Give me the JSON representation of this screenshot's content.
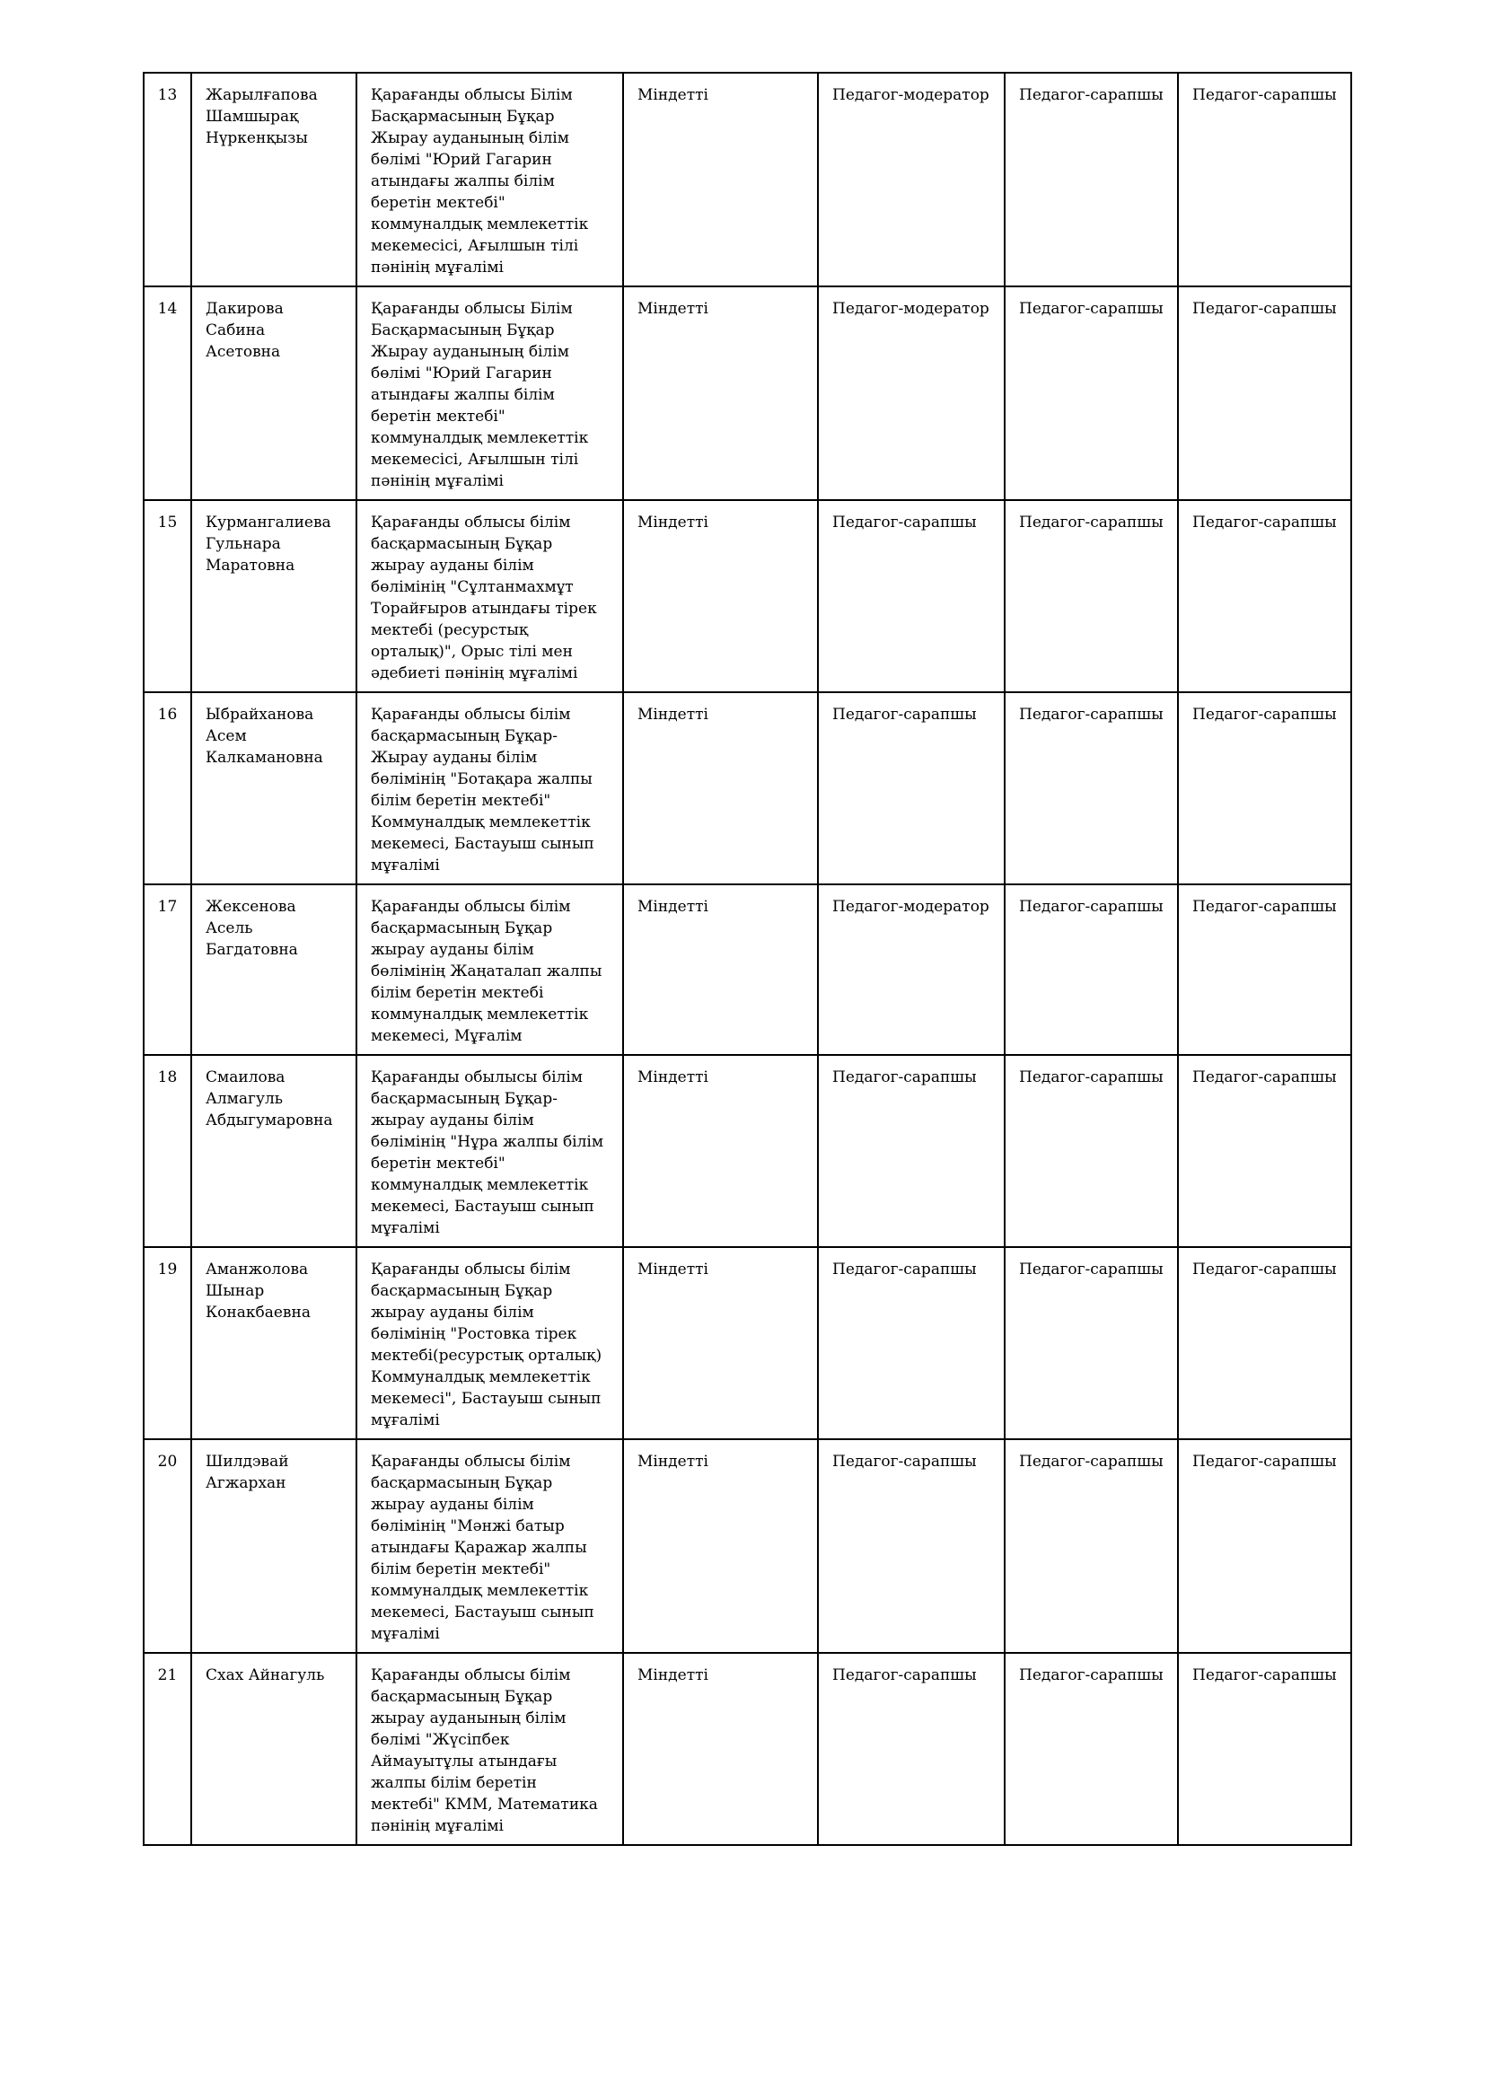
{
  "rows": [
    {
      "no": "13",
      "name": "Жарылғапова\nШамшырақ\nНүркенқызы",
      "workplace": "Қарағанды облысы Білім\nБасқармасының Бұқар\nЖырау ауданының білім\nбөлімі \"Юрий Гагарин\nатындағы жалпы білім\nберетін мектебі\"\nкоммуналдық мемлекеттік\nмекемесісі, Ағылшын тілі\nпәнінің мұғалімі",
      "type": "Міндетті",
      "cat1": "Педагог-модератор",
      "cat2": "Педагог-сарапшы",
      "cat3": "Педагог-сарапшы"
    },
    {
      "no": "14",
      "name": "Дакирова\nСабина\nАсетовна",
      "workplace": "Қарағанды облысы Білім\nБасқармасының Бұқар\nЖырау ауданының білім\nбөлімі \"Юрий Гагарин\nатындағы жалпы білім\nберетін мектебі\"\nкоммуналдық мемлекеттік\nмекемесісі, Ағылшын тілі\nпәнінің мұғалімі",
      "type": "Міндетті",
      "cat1": "Педагог-модератор",
      "cat2": "Педагог-сарапшы",
      "cat3": "Педагог-сарапшы"
    },
    {
      "no": "15",
      "name": "Курмангалиева\nГульнара\nМаратовна",
      "workplace": "Қарағанды облысы білім\nбасқармасының Бұқар\nжырау ауданы білім\nбөлімінің \"Сұлтанмахмұт\nТорайғыров атындағы тірек\nмектебі (ресурстық\nорталық)\", Орыс тілі мен\nәдебиеті пәнінің мұғалімі",
      "type": "Міндетті",
      "cat1": "Педагог-сарапшы",
      "cat2": "Педагог-сарапшы",
      "cat3": "Педагог-сарапшы"
    },
    {
      "no": "16",
      "name": "Ыбрайханова\nАсем\nКалкамановна",
      "workplace": "Қарағанды облысы білім\nбасқармасының Бұқар-\nЖырау ауданы білім\nбөлімінің \"Ботақара жалпы\nбілім беретін мектебі\"\nКоммуналдық мемлекеттік\nмекемесі, Бастауыш сынып\nмұғалімі",
      "type": "Міндетті",
      "cat1": "Педагог-сарапшы",
      "cat2": "Педагог-сарапшы",
      "cat3": "Педагог-сарапшы"
    },
    {
      "no": "17",
      "name": "Жексенова\nАсель\nБагдатовна",
      "workplace": "Қарағанды облысы білім\nбасқармасының Бұқар\nжырау ауданы білім\nбөлімінің Жаңаталап жалпы\nбілім беретін мектебі\nкоммуналдық мемлекеттік\nмекемесі, Мұғалім",
      "type": "Міндетті",
      "cat1": "Педагог-модератор",
      "cat2": "Педагог-сарапшы",
      "cat3": "Педагог-сарапшы"
    },
    {
      "no": "18",
      "name": "Смаилова\nАлмагуль\nАбдыгумаровна",
      "workplace": "Қарағанды обылысы білім\nбасқармасының Бұқар-\nжырау ауданы білім\nбөлімінің \"Нұра жалпы білім\nберетін мектебі\"\nкоммуналдық мемлекеттік\nмекемесі, Бастауыш сынып\nмұғалімі",
      "type": "Міндетті",
      "cat1": "Педагог-сарапшы",
      "cat2": "Педагог-сарапшы",
      "cat3": "Педагог-сарапшы"
    },
    {
      "no": "19",
      "name": "Аманжолова\nШынар\nКонакбаевна",
      "workplace": "Қарағанды облысы білім\nбасқармасының Бұқар\nжырау ауданы білім\nбөлімінің \"Ростовка тірек\nмектебі(ресурстық орталық)\nКоммуналдық мемлекеттік\nмекемесі\", Бастауыш сынып\nмұғалімі",
      "type": "Міндетті",
      "cat1": "Педагог-сарапшы",
      "cat2": "Педагог-сарапшы",
      "cat3": "Педагог-сарапшы"
    },
    {
      "no": "20",
      "name": "Шилдэвай\nАгжархан",
      "workplace": "Қарағанды облысы білім\nбасқармасының Бұқар\nжырау ауданы білім\nбөлімінің \"Мәнжі батыр\nатындағы Қаражар жалпы\nбілім беретін мектебі\"\nкоммуналдық мемлекеттік\nмекемесі, Бастауыш сынып\nмұғалімі",
      "type": "Міндетті",
      "cat1": "Педагог-сарапшы",
      "cat2": "Педагог-сарапшы",
      "cat3": "Педагог-сарапшы"
    },
    {
      "no": "21",
      "name": "Схах Айнагуль",
      "workplace": "Қарағанды облысы білім\nбасқармасының Бұқар\nжырау ауданының білім\nбөлімі \"Жүсіпбек\nАймауытұлы атындағы\nжалпы білім беретін\nмектебі\" КММ, Математика\nпәнінің мұғалімі",
      "type": "Міндетті",
      "cat1": "Педагог-сарапшы",
      "cat2": "Педагог-сарапшы",
      "cat3": "Педагог-сарапшы"
    }
  ]
}
